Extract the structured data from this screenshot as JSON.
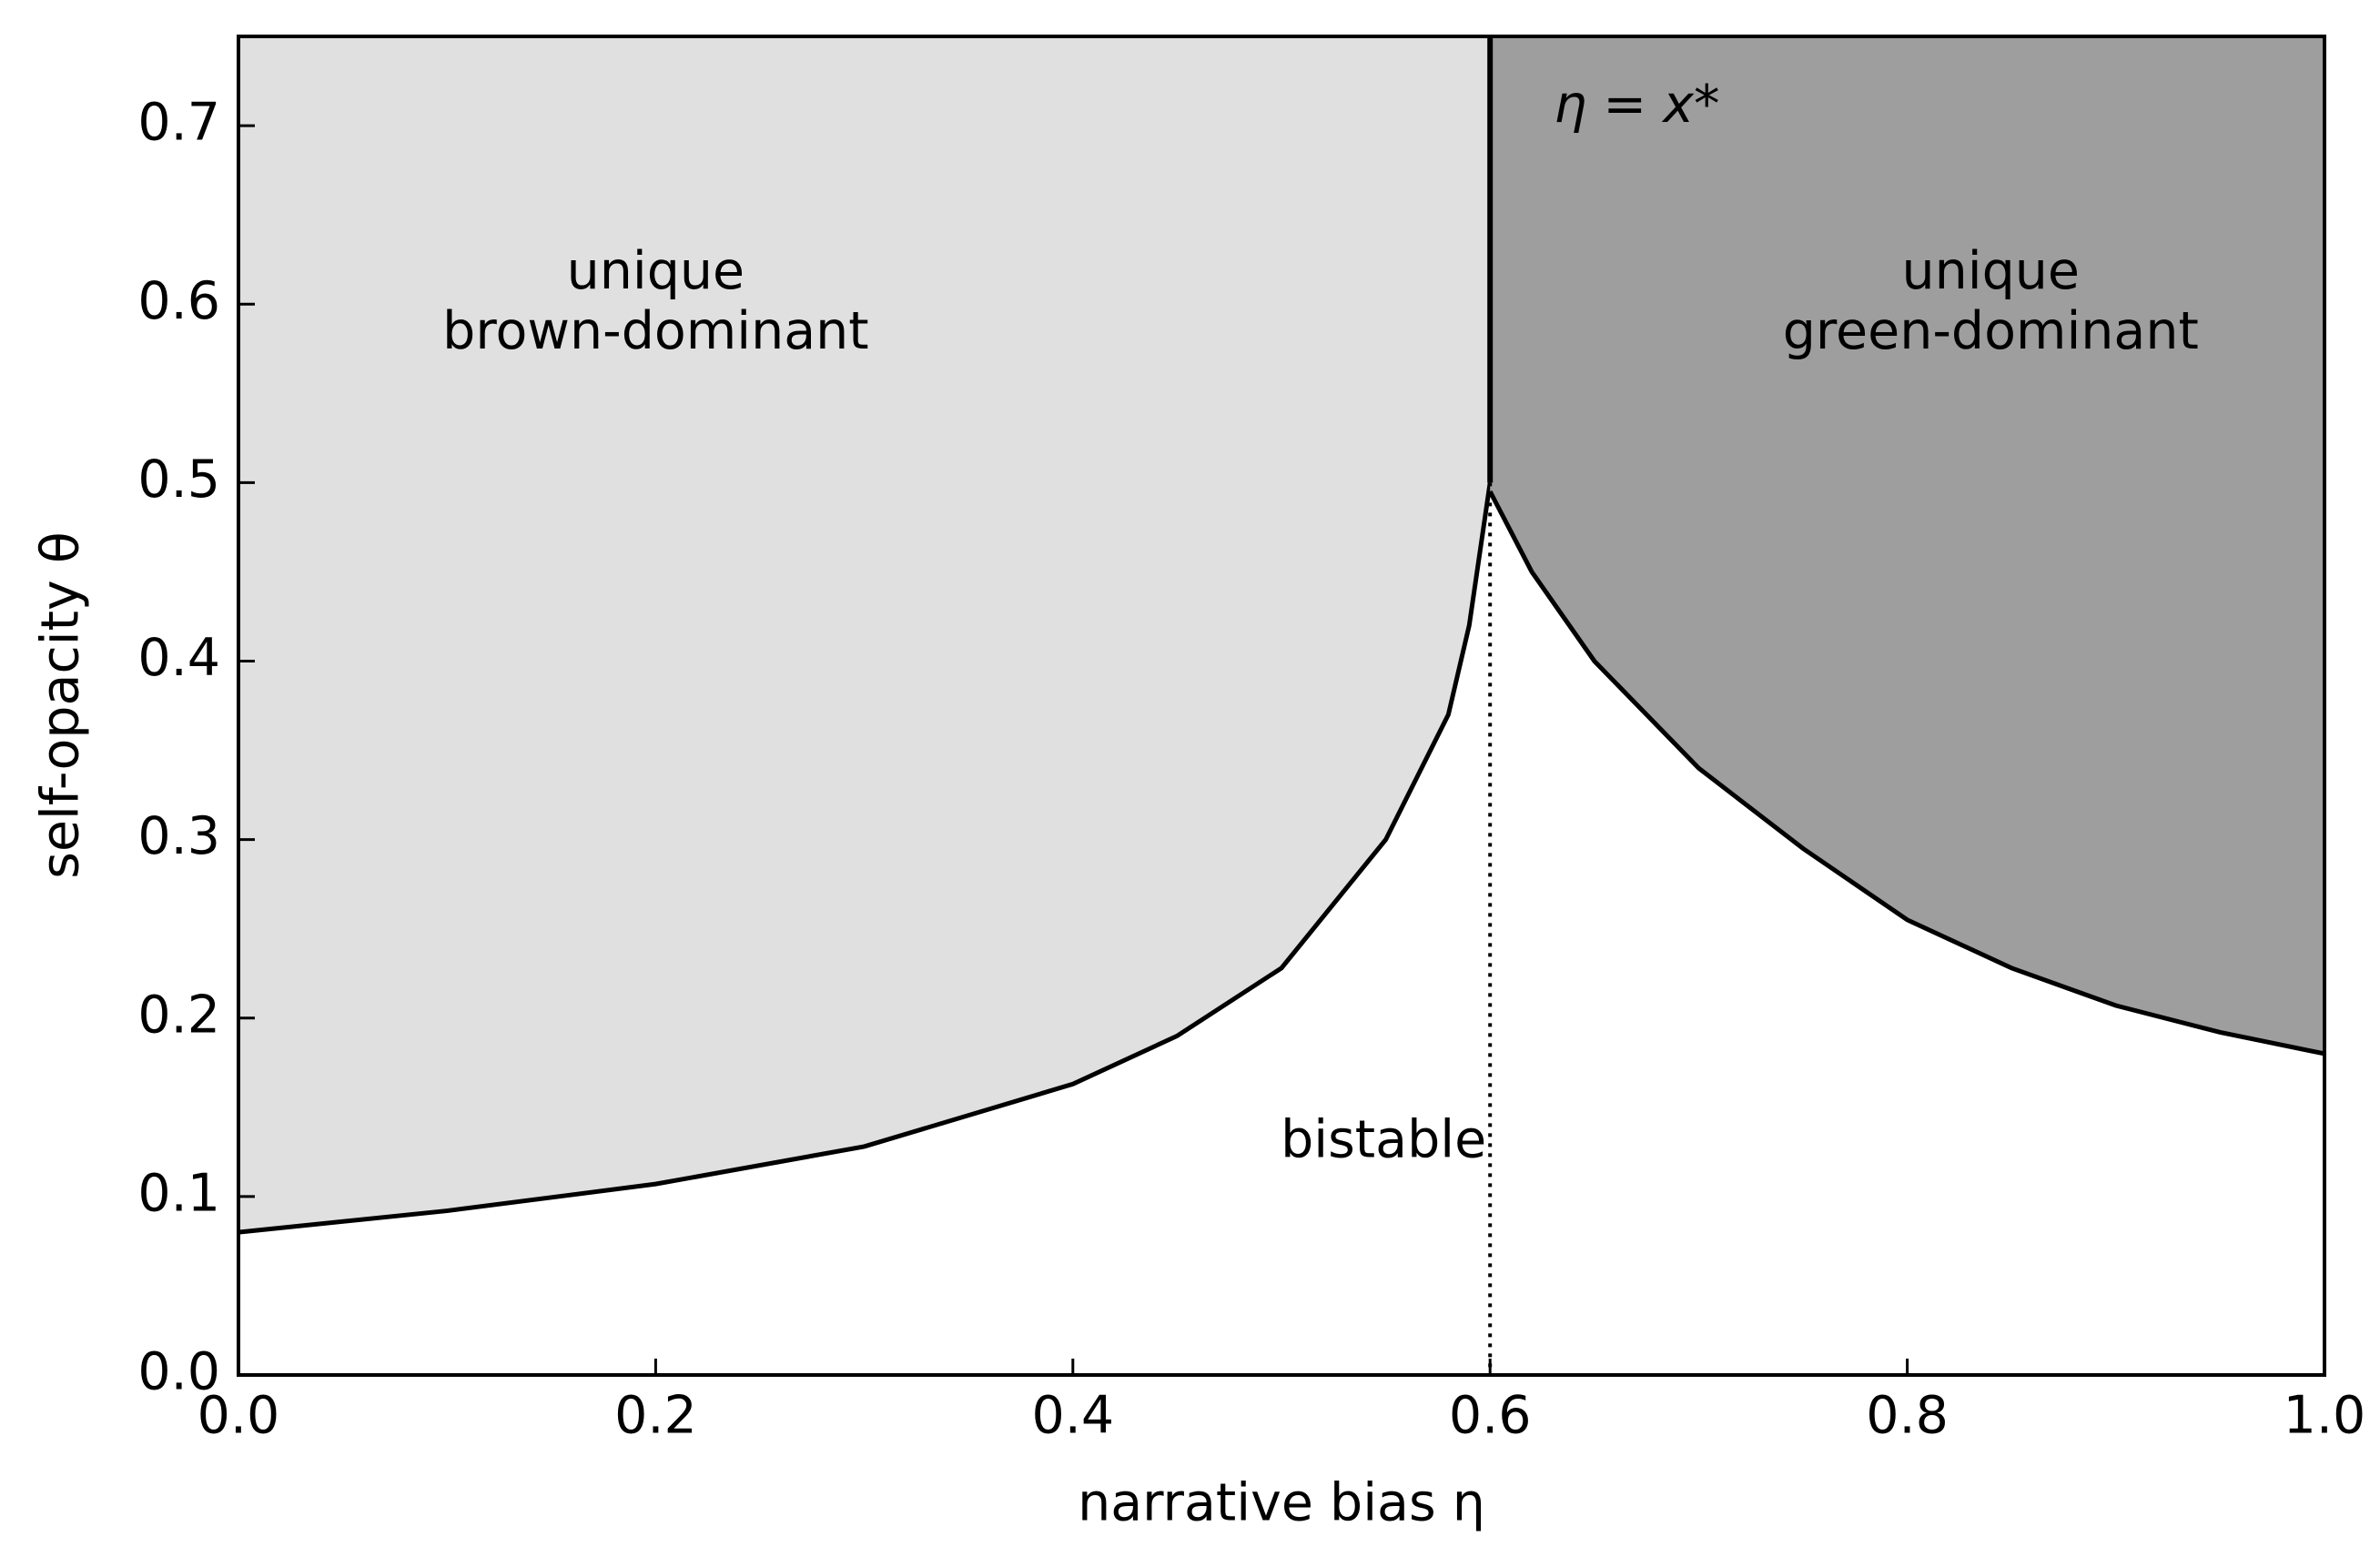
{
  "chart_data": {
    "type": "region",
    "x_label": "narrative bias η",
    "y_label": "self-opacity θ",
    "xlim": [
      0,
      1
    ],
    "ylim": [
      0,
      0.75
    ],
    "xticks": [
      {
        "value": 0,
        "label": "0.0"
      },
      0.2,
      0.4,
      0.6,
      0.8,
      {
        "value": 1,
        "label": "1.0"
      }
    ],
    "yticks": [
      {
        "value": 0,
        "label": "0.0"
      },
      0.1,
      0.2,
      0.3,
      0.4,
      0.5,
      0.6,
      0.7
    ],
    "regions": [
      {
        "label": [
          "unique",
          "brown-dominant"
        ],
        "color": "#e0e0e0",
        "x": [
          0,
          0.1,
          0.2,
          0.3,
          0.4,
          0.45,
          0.5,
          0.55,
          0.58,
          0.59,
          0.6
        ],
        "y": [
          0.08,
          0.092,
          0.107,
          0.128,
          0.163,
          0.19,
          0.228,
          0.3,
          0.37,
          0.42,
          0.5
        ]
      },
      {
        "label": [
          "unique",
          "green-dominant"
        ],
        "color": "#9e9e9e",
        "x": [
          0.6,
          0.62,
          0.65,
          0.7,
          0.75,
          0.8,
          0.85,
          0.9,
          0.95,
          1
        ],
        "y": [
          0.495,
          0.45,
          0.4,
          0.34,
          0.295,
          0.255,
          0.228,
          0.207,
          0.192,
          0.18
        ]
      }
    ],
    "bistable_label": "bistable",
    "threshold": {
      "label": "η = x*",
      "x": 0.6
    }
  }
}
